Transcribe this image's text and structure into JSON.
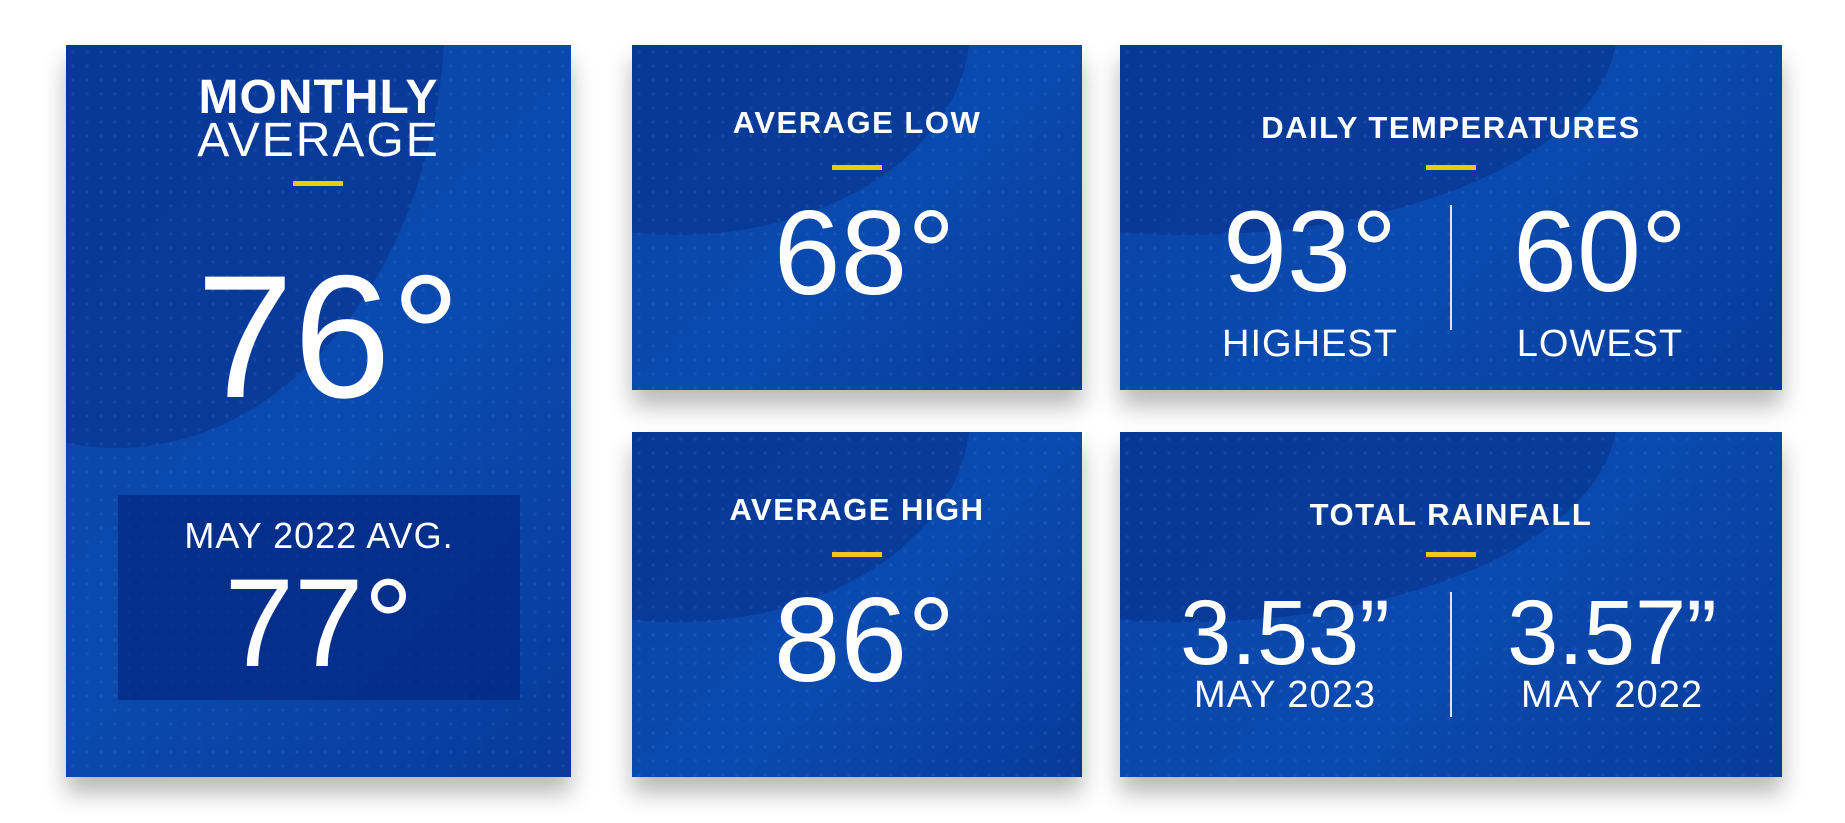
{
  "monthly": {
    "title_bold": "MONTHLY",
    "title_light": "AVERAGE",
    "value": "76°",
    "compare_label": "MAY 2022 AVG.",
    "compare_value": "77°"
  },
  "avg_low": {
    "title": "AVERAGE LOW",
    "value": "68°"
  },
  "avg_high": {
    "title": "AVERAGE HIGH",
    "value": "86°"
  },
  "daily": {
    "title": "DAILY TEMPERATURES",
    "high_value": "93°",
    "high_label": "HIGHEST",
    "low_value": "60°",
    "low_label": "LOWEST"
  },
  "rainfall": {
    "title": "TOTAL RAINFALL",
    "current_value": "3.53”",
    "current_label": "MAY 2023",
    "prior_value": "3.57”",
    "prior_label": "MAY 2022"
  },
  "colors": {
    "card": "#0a44a8",
    "accent": "#f5c518",
    "inset": "#053088"
  }
}
